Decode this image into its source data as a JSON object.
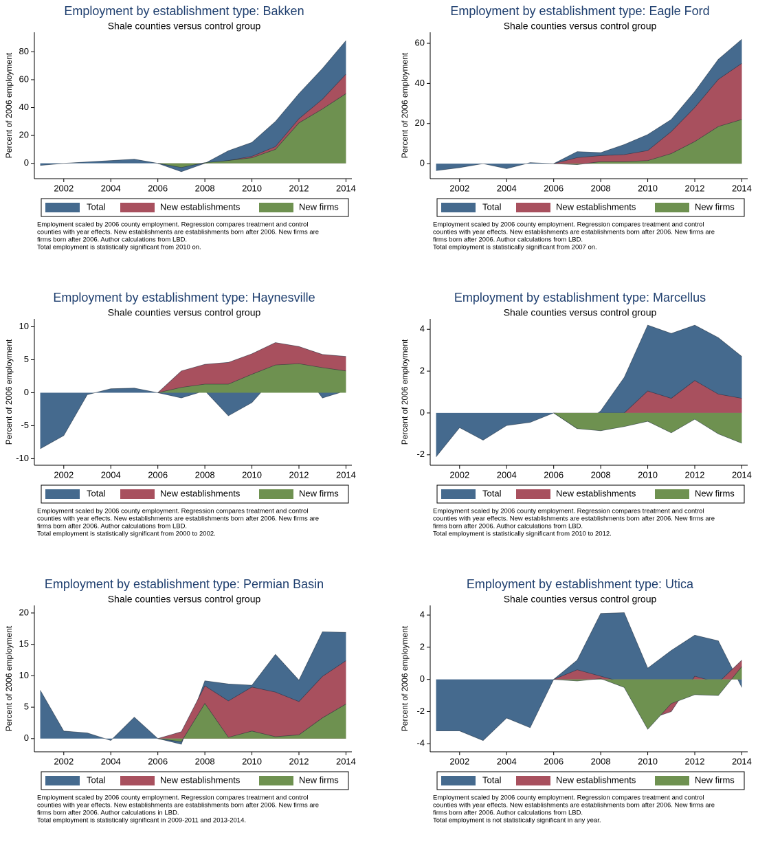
{
  "chart_data": [
    {
      "type": "area",
      "title": "Employment by establishment type: Bakken",
      "subtitle": "Shale counties versus control group",
      "ylabel": "Percent of 2006 employment",
      "x": [
        2001,
        2002,
        2003,
        2004,
        2005,
        2006,
        2007,
        2008,
        2009,
        2010,
        2011,
        2012,
        2013,
        2014
      ],
      "series": [
        {
          "name": "Total",
          "color": "#456a8e",
          "values": [
            -1.5,
            0,
            1,
            2,
            3,
            0,
            -6,
            0,
            9,
            15,
            30,
            50,
            68,
            88
          ]
        },
        {
          "name": "New establishments",
          "color": "#a8505e",
          "values": [
            null,
            null,
            null,
            null,
            null,
            0,
            -2,
            0,
            2,
            5,
            12,
            32,
            46,
            64
          ]
        },
        {
          "name": "New firms",
          "color": "#6e9150",
          "values": [
            null,
            null,
            null,
            null,
            null,
            0,
            -3,
            0.5,
            2,
            4,
            10,
            29,
            39,
            50
          ]
        }
      ],
      "xlim": [
        2000.75,
        2014.25
      ],
      "xticks": [
        2002,
        2004,
        2006,
        2008,
        2010,
        2012,
        2014
      ],
      "ylim": [
        -11,
        94
      ],
      "yticks": [
        0,
        20,
        40,
        60,
        80
      ],
      "notes": [
        "Employment scaled by 2006 county employment. Regression compares treatment and control",
        "counties with year effects. New establishments are establishments born after 2006. New firms are",
        "firms born after 2006. Author calculations from LBD.",
        "Total employment is statistically significant from 2010 on."
      ]
    },
    {
      "type": "area",
      "title": "Employment by establishment type: Eagle Ford",
      "subtitle": "Shale counties versus control group",
      "ylabel": "Percent of 2006 employment",
      "x": [
        2001,
        2002,
        2003,
        2004,
        2005,
        2006,
        2007,
        2008,
        2009,
        2010,
        2011,
        2012,
        2013,
        2014
      ],
      "series": [
        {
          "name": "Total",
          "color": "#456a8e",
          "values": [
            -3.5,
            -2,
            0,
            -2.5,
            0.5,
            0,
            6,
            5.5,
            9.5,
            14.5,
            22,
            36,
            52,
            62
          ]
        },
        {
          "name": "New establishments",
          "color": "#a8505e",
          "values": [
            null,
            null,
            null,
            null,
            null,
            0,
            3,
            4,
            4.5,
            6.5,
            16,
            28,
            42,
            50
          ]
        },
        {
          "name": "New firms",
          "color": "#6e9150",
          "values": [
            null,
            null,
            null,
            null,
            null,
            0,
            -0.5,
            1,
            1,
            1.5,
            5,
            11,
            18.5,
            22
          ]
        }
      ],
      "xlim": [
        2000.75,
        2014.25
      ],
      "xticks": [
        2002,
        2004,
        2006,
        2008,
        2010,
        2012,
        2014
      ],
      "ylim": [
        -7.5,
        65.5
      ],
      "yticks": [
        0,
        20,
        40,
        60
      ],
      "notes": [
        "Employment scaled by 2006 county employment. Regression compares treatment and control",
        "counties with year effects. New establishments are establishments born after 2006. New firms are",
        "firms born after 2006. Author calculations from LBD.",
        "Total employment is statistically significant from 2007 on."
      ]
    },
    {
      "type": "area",
      "title": "Employment by establishment type: Haynesville",
      "subtitle": "Shale counties versus control group",
      "ylabel": "Percent of 2006 employment",
      "x": [
        2001,
        2002,
        2003,
        2004,
        2005,
        2006,
        2007,
        2008,
        2009,
        2010,
        2011,
        2012,
        2013,
        2014
      ],
      "series": [
        {
          "name": "Total",
          "color": "#456a8e",
          "values": [
            -8.5,
            -6.5,
            -0.3,
            0.6,
            0.7,
            0,
            -0.8,
            0.3,
            -3.5,
            -1.5,
            2.5,
            4,
            -0.8,
            0.3
          ]
        },
        {
          "name": "New establishments",
          "color": "#a8505e",
          "values": [
            null,
            null,
            null,
            null,
            null,
            0,
            3.3,
            4.3,
            4.6,
            5.9,
            7.6,
            7,
            5.8,
            5.5
          ]
        },
        {
          "name": "New firms",
          "color": "#6e9150",
          "values": [
            null,
            null,
            null,
            null,
            null,
            0,
            0.8,
            1.3,
            1.3,
            2.8,
            4.2,
            4.4,
            3.8,
            3.3
          ]
        }
      ],
      "xlim": [
        2000.75,
        2014.25
      ],
      "xticks": [
        2002,
        2004,
        2006,
        2008,
        2010,
        2012,
        2014
      ],
      "ylim": [
        -11,
        11.2
      ],
      "yticks": [
        -10,
        -5,
        0,
        5,
        10
      ],
      "notes": [
        "Employment scaled by 2006 county employment. Regression compares treatment and control",
        "counties with year effects. New establishments are establishments born after 2006. New firms are",
        "firms born after 2006. Author calculations from LBD.",
        "Total employment is statistically significant from 2000 to 2002."
      ]
    },
    {
      "type": "area",
      "title": "Employment by establishment type: Marcellus",
      "subtitle": "Shale counties versus control group",
      "ylabel": "Percent of 2006 employment",
      "x": [
        2001,
        2002,
        2003,
        2004,
        2005,
        2006,
        2007,
        2008,
        2009,
        2010,
        2011,
        2012,
        2013,
        2014
      ],
      "series": [
        {
          "name": "Total",
          "color": "#456a8e",
          "values": [
            -2.1,
            -0.7,
            -1.3,
            -0.6,
            -0.45,
            0,
            -0.75,
            0.1,
            1.7,
            4.2,
            3.8,
            4.2,
            3.6,
            2.7
          ]
        },
        {
          "name": "New establishments",
          "color": "#a8505e",
          "values": [
            null,
            null,
            null,
            null,
            null,
            0,
            -0.1,
            0,
            0,
            1.05,
            0.7,
            1.55,
            0.9,
            0.7
          ]
        },
        {
          "name": "New firms",
          "color": "#6e9150",
          "values": [
            null,
            null,
            null,
            null,
            null,
            0,
            -0.75,
            -0.85,
            -0.65,
            -0.4,
            -0.95,
            -0.3,
            -1,
            -1.45
          ]
        }
      ],
      "xlim": [
        2000.75,
        2014.25
      ],
      "xticks": [
        2002,
        2004,
        2006,
        2008,
        2010,
        2012,
        2014
      ],
      "ylim": [
        -2.5,
        4.5
      ],
      "yticks": [
        -2,
        0,
        2,
        4
      ],
      "notes": [
        "Employment scaled by 2006 county employment. Regression compares treatment and control",
        "counties with year effects. New establishments are establishments born after 2006. New firms are",
        "firms born after 2006. Author calculations from LBD.",
        "Total employment is statistically significant from 2010 to 2012."
      ]
    },
    {
      "type": "area",
      "title": "Employment by establishment type: Permian Basin",
      "subtitle": "Shale counties versus control group",
      "ylabel": "Percent of 2006 employment",
      "x": [
        2001,
        2002,
        2003,
        2004,
        2005,
        2006,
        2007,
        2008,
        2009,
        2010,
        2011,
        2012,
        2013,
        2014
      ],
      "series": [
        {
          "name": "Total",
          "color": "#456a8e",
          "values": [
            7.7,
            1.2,
            0.9,
            -0.3,
            3.4,
            0,
            -0.9,
            9.2,
            8.7,
            8.5,
            13.4,
            9.3,
            17,
            16.9
          ]
        },
        {
          "name": "New establishments",
          "color": "#a8505e",
          "values": [
            null,
            null,
            null,
            null,
            null,
            0,
            1.1,
            8.4,
            6,
            8.2,
            7.4,
            5.9,
            9.9,
            12.4
          ]
        },
        {
          "name": "New firms",
          "color": "#6e9150",
          "values": [
            null,
            null,
            null,
            null,
            null,
            0,
            -0.5,
            5.6,
            0.2,
            1.2,
            0.3,
            0.6,
            3.3,
            5.5
          ]
        }
      ],
      "xlim": [
        2000.75,
        2014.25
      ],
      "xticks": [
        2002,
        2004,
        2006,
        2008,
        2010,
        2012,
        2014
      ],
      "ylim": [
        -2.1,
        21.2
      ],
      "yticks": [
        0,
        5,
        10,
        15,
        20
      ],
      "notes": [
        "Employment scaled by 2006 county employment. Regression compares treatment and control",
        "counties with year effects. New establishments are establishments born after 2006. New firms are",
        "firms born after 2006. Author calculations in LBD.",
        "Total employment is statistically significant in 2009-2011 and 2013-2014."
      ]
    },
    {
      "type": "area",
      "title": "Employment by establishment type: Utica",
      "subtitle": "Shale counties versus control group",
      "ylabel": "Percent of 2006 employment",
      "x": [
        2001,
        2002,
        2003,
        2004,
        2005,
        2006,
        2007,
        2008,
        2009,
        2010,
        2011,
        2012,
        2013,
        2014
      ],
      "series": [
        {
          "name": "Total",
          "color": "#456a8e",
          "values": [
            -3.2,
            -3.2,
            -3.8,
            -2.4,
            -3,
            0,
            1.2,
            4.1,
            4.15,
            0.7,
            1.8,
            2.75,
            2.4,
            -0.5
          ]
        },
        {
          "name": "New establishments",
          "color": "#a8505e",
          "values": [
            null,
            null,
            null,
            null,
            null,
            0,
            0.6,
            0.2,
            -0.2,
            -2.5,
            -2,
            0.2,
            -0.2,
            1.2
          ]
        },
        {
          "name": "New firms",
          "color": "#6e9150",
          "values": [
            null,
            null,
            null,
            null,
            null,
            0,
            -0.1,
            0.05,
            -0.5,
            -3.1,
            -1.5,
            -0.95,
            -1,
            0.8
          ]
        }
      ],
      "xlim": [
        2000.75,
        2014.25
      ],
      "xticks": [
        2002,
        2004,
        2006,
        2008,
        2010,
        2012,
        2014
      ],
      "ylim": [
        -4.5,
        4.6
      ],
      "yticks": [
        -4,
        -2,
        0,
        2,
        4
      ],
      "notes": [
        "Employment scaled by 2006 county employment. Regression compares treatment and control",
        "counties with year effects. New establishments are establishments born after 2006. New firms are",
        "firms born after 2006. Author calculations from LBD.",
        "Total employment is not statistically significant in any year."
      ]
    }
  ]
}
